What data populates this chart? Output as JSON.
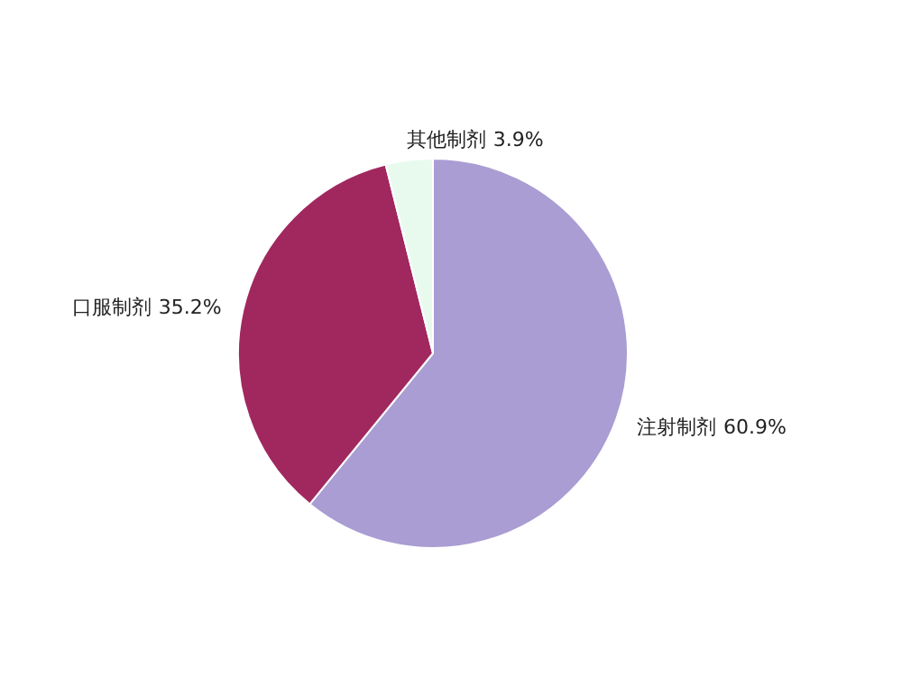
{
  "chart_data": {
    "type": "pie",
    "categories": [
      "注射制剂",
      "口服制剂",
      "其他制剂"
    ],
    "values": [
      60.9,
      35.2,
      3.9
    ],
    "colors": [
      "#a99dd3",
      "#a0285f",
      "#e8faee"
    ],
    "value_labels": [
      "60.9%",
      "35.2%",
      "3.9%"
    ]
  }
}
